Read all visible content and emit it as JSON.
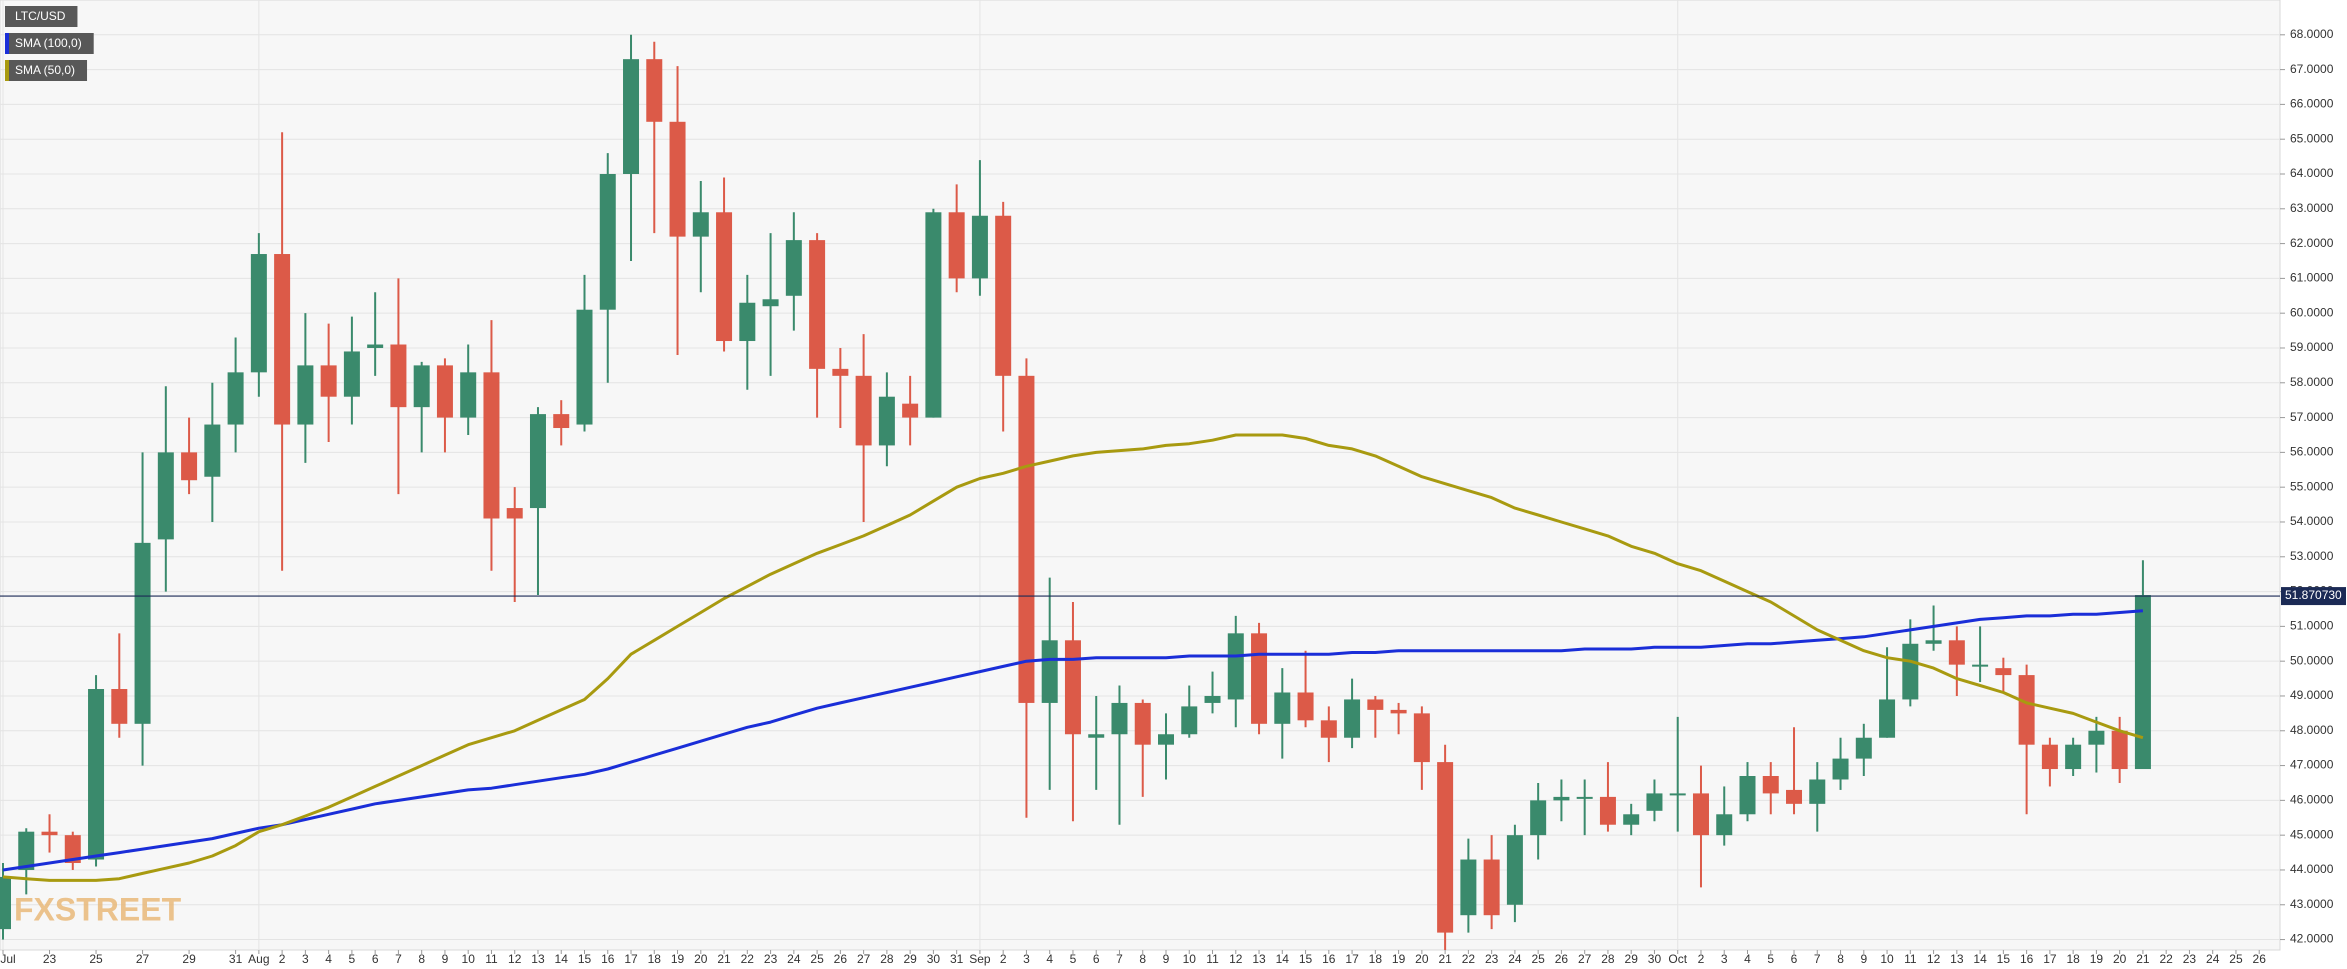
{
  "chart_data": {
    "type": "candlestick",
    "name": "LTC/USD",
    "up_color": "#3a8a6c",
    "down_color": "#dc5a48",
    "grid": true,
    "watermark": "FXSTREET",
    "categories": [
      "Jul",
      null,
      "23",
      null,
      "25",
      null,
      "27",
      null,
      "29",
      null,
      "31",
      "Aug",
      "2",
      "3",
      "4",
      "5",
      "6",
      "7",
      "8",
      "9",
      "10",
      "11",
      "12",
      "13",
      "14",
      "15",
      "16",
      "17",
      "18",
      "19",
      "20",
      "21",
      "22",
      "23",
      "24",
      "25",
      "26",
      "27",
      "28",
      "29",
      "30",
      "31",
      "Sep",
      "2",
      "3",
      "4",
      "5",
      "6",
      "7",
      "8",
      "9",
      "10",
      "11",
      "12",
      "13",
      "14",
      "15",
      "16",
      "17",
      "18",
      "19",
      "20",
      "21",
      "22",
      "23",
      "24",
      "25",
      "26",
      "27",
      "28",
      "29",
      "30",
      "Oct",
      "2",
      "3",
      "4",
      "5",
      "6",
      "7",
      "8",
      "9",
      "10",
      "11",
      "12",
      "13",
      "14",
      "15",
      "16",
      "17",
      "18",
      "19",
      "20",
      "21",
      "22",
      "23",
      "24",
      "25",
      "26"
    ],
    "open": [
      42.3,
      44.0,
      45.1,
      45.0,
      44.3,
      49.2,
      48.2,
      53.5,
      56.0,
      55.3,
      56.8,
      58.3,
      61.7,
      56.8,
      58.5,
      57.6,
      59.0,
      59.1,
      57.3,
      58.5,
      57.0,
      58.3,
      54.4,
      54.4,
      57.1,
      56.8,
      60.1,
      64.0,
      67.3,
      65.5,
      62.2,
      62.9,
      59.2,
      60.2,
      60.5,
      62.1,
      58.4,
      58.2,
      56.2,
      57.4,
      57.0,
      62.9,
      61.0,
      62.8,
      58.2,
      48.8,
      50.6,
      47.8,
      47.9,
      48.8,
      47.6,
      47.9,
      48.8,
      48.9,
      50.8,
      48.2,
      49.1,
      48.3,
      47.8,
      48.9,
      48.6,
      48.5,
      47.1,
      42.7,
      44.3,
      43.0,
      45.0,
      46.0,
      46.1,
      46.1,
      45.3,
      45.7,
      46.2,
      46.2,
      45.0,
      45.6,
      46.7,
      46.3,
      45.9,
      46.6,
      47.2,
      47.8,
      48.9,
      50.5,
      50.6,
      49.9,
      49.8,
      49.6,
      47.6,
      46.9,
      47.6,
      48.0,
      46.9,
      null,
      null,
      null,
      null,
      null
    ],
    "high": [
      44.2,
      45.2,
      45.6,
      45.1,
      49.6,
      50.8,
      56.0,
      57.9,
      57.0,
      58.0,
      59.3,
      62.3,
      65.2,
      60.0,
      59.7,
      59.9,
      60.6,
      61.0,
      58.6,
      58.7,
      59.1,
      59.8,
      55.0,
      57.3,
      57.5,
      61.1,
      64.6,
      68.0,
      67.8,
      67.1,
      63.8,
      63.9,
      61.1,
      62.3,
      62.9,
      62.3,
      59.0,
      59.4,
      58.3,
      58.2,
      63.0,
      63.7,
      64.4,
      63.2,
      58.7,
      52.4,
      51.7,
      49.0,
      49.3,
      48.9,
      48.5,
      49.3,
      49.7,
      51.3,
      51.1,
      49.8,
      50.3,
      48.7,
      49.5,
      49.0,
      48.8,
      48.7,
      47.6,
      44.9,
      45.0,
      45.3,
      46.5,
      46.6,
      46.6,
      47.1,
      45.9,
      46.6,
      48.4,
      47.0,
      46.4,
      47.1,
      47.1,
      48.1,
      47.1,
      47.8,
      48.2,
      50.4,
      51.2,
      51.6,
      51.0,
      51.0,
      50.1,
      49.9,
      47.8,
      47.8,
      48.4,
      48.4,
      52.9,
      null,
      null,
      null,
      null,
      null
    ],
    "low": [
      42.0,
      43.3,
      44.5,
      44.0,
      44.1,
      47.8,
      47.0,
      52.0,
      54.8,
      54.0,
      56.0,
      57.6,
      52.6,
      55.7,
      56.3,
      56.8,
      58.2,
      54.8,
      56.0,
      56.0,
      56.5,
      52.6,
      51.7,
      51.9,
      56.2,
      56.6,
      58.0,
      61.5,
      62.3,
      58.8,
      60.6,
      58.9,
      57.8,
      58.2,
      59.5,
      57.0,
      56.7,
      54.0,
      55.6,
      56.2,
      57.0,
      60.6,
      60.5,
      56.6,
      45.5,
      46.3,
      45.4,
      46.3,
      45.3,
      46.1,
      46.6,
      47.8,
      48.5,
      48.1,
      47.9,
      47.2,
      48.1,
      47.1,
      47.5,
      47.8,
      47.9,
      46.3,
      41.7,
      42.2,
      42.3,
      42.5,
      44.3,
      45.4,
      45.0,
      45.1,
      45.0,
      45.4,
      45.1,
      43.5,
      44.7,
      45.4,
      45.6,
      45.6,
      45.1,
      46.3,
      46.7,
      47.8,
      48.7,
      50.3,
      49.0,
      49.4,
      49.1,
      45.6,
      46.4,
      46.7,
      46.8,
      46.5,
      46.9,
      null,
      null,
      null,
      null,
      null
    ],
    "close": [
      43.8,
      45.1,
      45.0,
      44.2,
      49.2,
      48.2,
      53.4,
      56.0,
      55.2,
      56.8,
      58.3,
      61.7,
      56.8,
      58.5,
      57.6,
      58.9,
      59.1,
      57.3,
      58.5,
      57.0,
      58.3,
      54.1,
      54.1,
      57.1,
      56.7,
      60.1,
      64.0,
      67.3,
      65.5,
      62.2,
      62.9,
      59.2,
      60.3,
      60.4,
      62.1,
      58.4,
      58.2,
      56.2,
      57.6,
      57.0,
      62.9,
      61.0,
      62.8,
      58.2,
      48.8,
      50.6,
      47.9,
      47.9,
      48.8,
      47.6,
      47.9,
      48.7,
      49.0,
      50.8,
      48.2,
      49.1,
      48.3,
      47.8,
      48.9,
      48.6,
      48.5,
      47.1,
      42.2,
      44.3,
      42.7,
      45.0,
      46.0,
      46.1,
      46.1,
      45.3,
      45.6,
      46.2,
      46.2,
      45.0,
      45.6,
      46.7,
      46.2,
      45.9,
      46.6,
      47.2,
      47.8,
      48.9,
      50.5,
      50.6,
      49.9,
      49.9,
      49.6,
      47.6,
      46.9,
      47.6,
      48.0,
      46.9,
      51.9,
      null,
      null,
      null,
      null,
      null
    ],
    "series": [
      {
        "name": "SMA (100,0)",
        "color": "#1a2ed8",
        "values": [
          44.0,
          44.1,
          44.2,
          44.3,
          44.4,
          44.5,
          44.6,
          44.7,
          44.8,
          44.9,
          45.05,
          45.2,
          45.3,
          45.45,
          45.6,
          45.75,
          45.9,
          46.0,
          46.1,
          46.2,
          46.3,
          46.35,
          46.45,
          46.55,
          46.65,
          46.75,
          46.9,
          47.1,
          47.3,
          47.5,
          47.7,
          47.9,
          48.1,
          48.25,
          48.45,
          48.65,
          48.8,
          48.95,
          49.1,
          49.25,
          49.4,
          49.55,
          49.7,
          49.85,
          50.0,
          50.05,
          50.05,
          50.1,
          50.1,
          50.1,
          50.1,
          50.15,
          50.15,
          50.15,
          50.2,
          50.2,
          50.2,
          50.2,
          50.25,
          50.25,
          50.3,
          50.3,
          50.3,
          50.3,
          50.3,
          50.3,
          50.3,
          50.3,
          50.35,
          50.35,
          50.35,
          50.4,
          50.4,
          50.4,
          50.45,
          50.5,
          50.5,
          50.55,
          50.6,
          50.65,
          50.7,
          50.8,
          50.9,
          51.0,
          51.1,
          51.2,
          51.25,
          51.3,
          51.3,
          51.35,
          51.35,
          51.4,
          51.45,
          null,
          null,
          null,
          null,
          null
        ]
      },
      {
        "name": "SMA (50,0)",
        "color": "#a89a10",
        "values": [
          43.8,
          43.75,
          43.7,
          43.7,
          43.7,
          43.75,
          43.9,
          44.05,
          44.2,
          44.4,
          44.7,
          45.1,
          45.3,
          45.55,
          45.8,
          46.1,
          46.4,
          46.7,
          47.0,
          47.3,
          47.6,
          47.8,
          48.0,
          48.3,
          48.6,
          48.9,
          49.5,
          50.2,
          50.6,
          51.0,
          51.4,
          51.8,
          52.15,
          52.5,
          52.8,
          53.1,
          53.35,
          53.6,
          53.9,
          54.2,
          54.6,
          55.0,
          55.25,
          55.4,
          55.6,
          55.75,
          55.9,
          56.0,
          56.05,
          56.1,
          56.2,
          56.25,
          56.35,
          56.5,
          56.5,
          56.5,
          56.4,
          56.2,
          56.1,
          55.9,
          55.6,
          55.3,
          55.1,
          54.9,
          54.7,
          54.4,
          54.2,
          54.0,
          53.8,
          53.6,
          53.3,
          53.1,
          52.8,
          52.6,
          52.3,
          52.0,
          51.7,
          51.3,
          50.9,
          50.6,
          50.3,
          50.1,
          50.0,
          49.8,
          49.5,
          49.3,
          49.1,
          48.8,
          48.65,
          48.5,
          48.25,
          48.0,
          47.8,
          null,
          null,
          null,
          null,
          null
        ]
      }
    ],
    "last_price": {
      "value": 51.87073,
      "label": "51.870730"
    },
    "last_price_color": "#1b2a55",
    "ylim": [
      41.7,
      69.0
    ],
    "yticks": [
      {
        "value": 42,
        "label": "42.0000"
      },
      {
        "value": 43,
        "label": "43.0000"
      },
      {
        "value": 44,
        "label": "44.0000"
      },
      {
        "value": 45,
        "label": "45.0000"
      },
      {
        "value": 46,
        "label": "46.0000"
      },
      {
        "value": 47,
        "label": "47.0000"
      },
      {
        "value": 48,
        "label": "48.0000"
      },
      {
        "value": 49,
        "label": "49.0000"
      },
      {
        "value": 50,
        "label": "50.0000"
      },
      {
        "value": 51,
        "label": "51.0000"
      },
      {
        "value": 52,
        "label": "52.0000"
      },
      {
        "value": 53,
        "label": "53.0000"
      },
      {
        "value": 54,
        "label": "54.0000"
      },
      {
        "value": 55,
        "label": "55.0000"
      },
      {
        "value": 56,
        "label": "56.0000"
      },
      {
        "value": 57,
        "label": "57.0000"
      },
      {
        "value": 58,
        "label": "58.0000"
      },
      {
        "value": 59,
        "label": "59.0000"
      },
      {
        "value": 60,
        "label": "60.0000"
      },
      {
        "value": 61,
        "label": "61.0000"
      },
      {
        "value": 62,
        "label": "62.0000"
      },
      {
        "value": 63,
        "label": "63.0000"
      },
      {
        "value": 64,
        "label": "64.0000"
      },
      {
        "value": 65,
        "label": "65.0000"
      },
      {
        "value": 66,
        "label": "66.0000"
      },
      {
        "value": 67,
        "label": "67.0000"
      },
      {
        "value": 68,
        "label": "68.0000"
      }
    ]
  }
}
